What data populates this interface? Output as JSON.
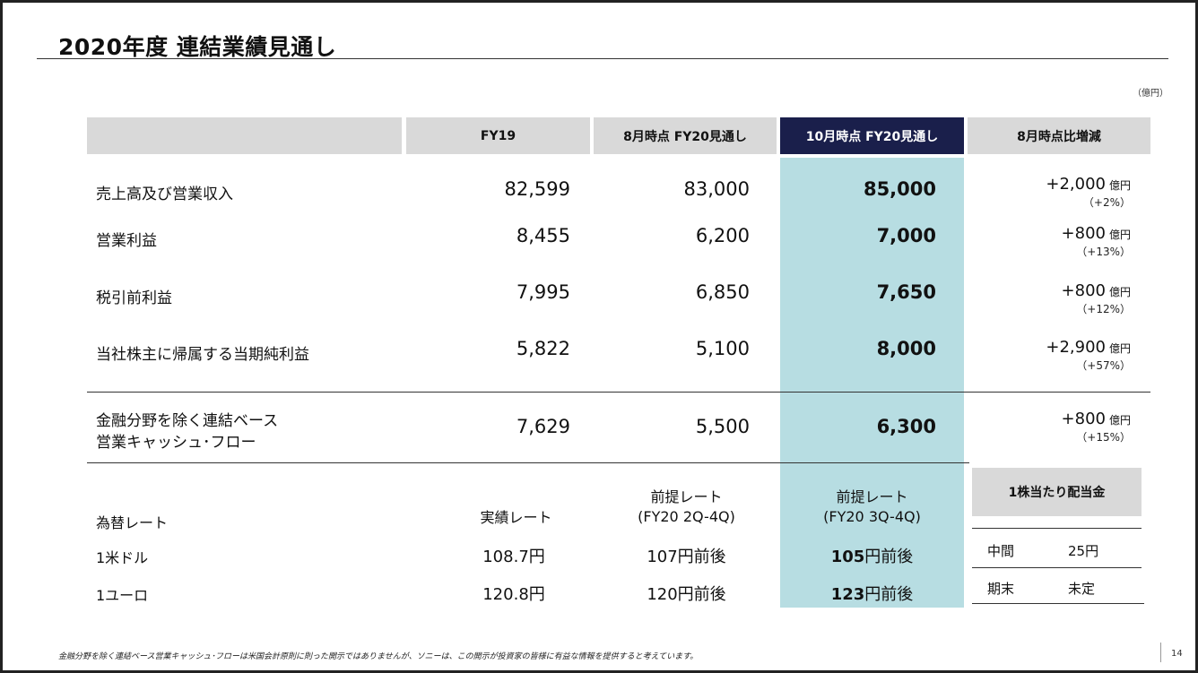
{
  "title": "2020年度 連結業績見通し",
  "unit": "（億円）",
  "headers": [
    "FY19",
    "8月時点 FY20見通し",
    "10月時点 FY20見通し",
    "8月時点比増減"
  ],
  "rows": [
    {
      "label": "売上高及び営業収入",
      "fy19": "82,599",
      "aug": "83,000",
      "oct": "85,000",
      "diff": "+2,000",
      "unit": "億円",
      "pct": "（+2%）"
    },
    {
      "label": "営業利益",
      "fy19": "8,455",
      "aug": "6,200",
      "oct": "7,000",
      "diff": "+800",
      "unit": "億円",
      "pct": "（+13%）"
    },
    {
      "label": "税引前利益",
      "fy19": "7,995",
      "aug": "6,850",
      "oct": "7,650",
      "diff": "+800",
      "unit": "億円",
      "pct": "（+12%）"
    },
    {
      "label": "当社株主に帰属する当期純利益",
      "fy19": "5,822",
      "aug": "5,100",
      "oct": "8,000",
      "diff": "+2,900",
      "unit": "億円",
      "pct": "（+57%）"
    }
  ],
  "cashflow": {
    "label1": "金融分野を除く連結ベース",
    "label2": "営業キャッシュ･フロー",
    "fy19": "7,629",
    "aug": "5,500",
    "oct": "6,300",
    "diff": "+800",
    "unit": "億円",
    "pct": "（+15%）"
  },
  "fx": {
    "label": "為替レート",
    "col1": "実績レート",
    "col2a": "前提レート",
    "col2b": "(FY20 2Q-4Q)",
    "col3a": "前提レート",
    "col3b": "(FY20 3Q-4Q)",
    "usd": {
      "label": "1米ドル",
      "actual": "108.7円",
      "aug": "107円前後",
      "oct_num": "105",
      "oct_suffix": "円前後"
    },
    "eur": {
      "label": "1ユーロ",
      "actual": "120.8円",
      "aug": "120円前後",
      "oct_num": "123",
      "oct_suffix": "円前後"
    }
  },
  "dividend": {
    "title": "1株当たり配当金",
    "interim_label": "中間",
    "interim_value": "25円",
    "year_end_label": "期末",
    "year_end_value": "未定"
  },
  "footnote": "金融分野を除く連結ベース営業キャッシュ･フローは米国会計原則に則った開示ではありませんが、ソニーは、この開示が投資家の皆様に有益な情報を提供すると考えています。",
  "page_number": "14"
}
